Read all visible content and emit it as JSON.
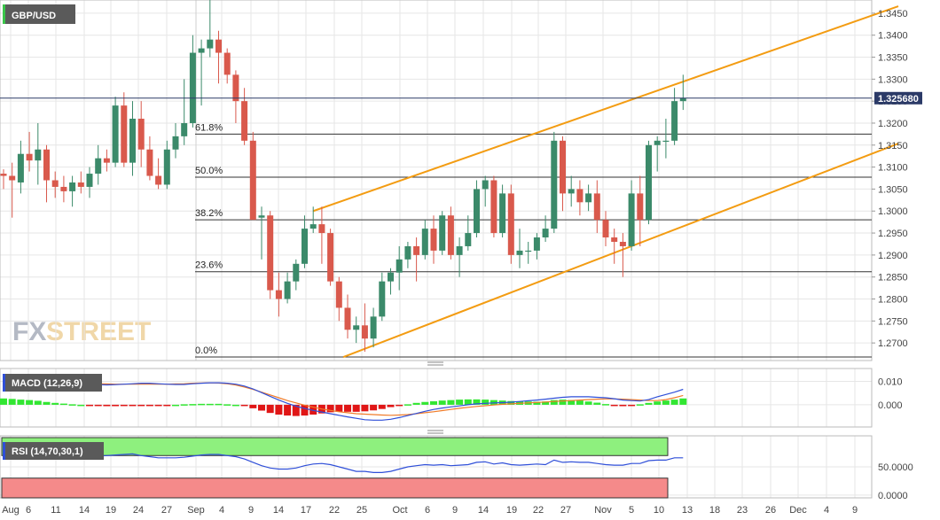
{
  "chart_data": [
    {
      "type": "candlestick",
      "symbol": "GBP/USD",
      "current_price": "1.325680",
      "ylim": [
        1.266,
        1.348
      ],
      "ytick_labels": [
        "1.3450",
        "1.3400",
        "1.3350",
        "1.3300",
        "1.3250",
        "1.3200",
        "1.3150",
        "1.3100",
        "1.3050",
        "1.3000",
        "1.2950",
        "1.2900",
        "1.2850",
        "1.2800",
        "1.2750",
        "1.2700"
      ],
      "ytick_values": [
        1.345,
        1.34,
        1.335,
        1.33,
        1.325,
        1.32,
        1.315,
        1.31,
        1.305,
        1.3,
        1.295,
        1.29,
        1.285,
        1.28,
        1.275,
        1.27
      ],
      "xtick_labels": [
        "Aug",
        "6",
        "11",
        "14",
        "19",
        "24",
        "27",
        "Sep",
        "4",
        "9",
        "14",
        "17",
        "22",
        "25",
        "Oct",
        "6",
        "9",
        "14",
        "19",
        "22",
        "27",
        "Nov",
        "5",
        "10",
        "13",
        "18",
        "23",
        "26",
        "Dec",
        "4",
        "9"
      ],
      "candles_ohlc": [
        [
          1.3085,
          1.3095,
          1.305,
          1.308
        ],
        [
          1.308,
          1.311,
          1.2985,
          1.307
        ],
        [
          1.3065,
          1.316,
          1.304,
          1.313
        ],
        [
          1.313,
          1.318,
          1.309,
          1.3115
        ],
        [
          1.3115,
          1.32,
          1.306,
          1.314
        ],
        [
          1.314,
          1.315,
          1.302,
          1.307
        ],
        [
          1.307,
          1.309,
          1.303,
          1.3055
        ],
        [
          1.3055,
          1.308,
          1.302,
          1.3045
        ],
        [
          1.3045,
          1.308,
          1.301,
          1.3065
        ],
        [
          1.3065,
          1.309,
          1.304,
          1.3055
        ],
        [
          1.3055,
          1.31,
          1.303,
          1.3085
        ],
        [
          1.3085,
          1.315,
          1.306,
          1.312
        ],
        [
          1.312,
          1.314,
          1.309,
          1.311
        ],
        [
          1.311,
          1.326,
          1.31,
          1.324
        ],
        [
          1.324,
          1.327,
          1.31,
          1.311
        ],
        [
          1.311,
          1.325,
          1.308,
          1.321
        ],
        [
          1.321,
          1.325,
          1.31,
          1.314
        ],
        [
          1.314,
          1.317,
          1.307,
          1.308
        ],
        [
          1.308,
          1.312,
          1.305,
          1.306
        ],
        [
          1.306,
          1.316,
          1.305,
          1.314
        ],
        [
          1.314,
          1.32,
          1.312,
          1.317
        ],
        [
          1.317,
          1.33,
          1.315,
          1.32
        ],
        [
          1.32,
          1.34,
          1.319,
          1.336
        ],
        [
          1.336,
          1.339,
          1.324,
          1.337
        ],
        [
          1.337,
          1.348,
          1.335,
          1.339
        ],
        [
          1.339,
          1.341,
          1.329,
          1.336
        ],
        [
          1.336,
          1.337,
          1.329,
          1.331
        ],
        [
          1.331,
          1.332,
          1.32,
          1.325
        ],
        [
          1.325,
          1.328,
          1.315,
          1.316
        ],
        [
          1.316,
          1.318,
          1.299,
          1.298
        ],
        [
          1.2985,
          1.301,
          1.289,
          1.299
        ],
        [
          1.299,
          1.3,
          1.28,
          1.282
        ],
        [
          1.282,
          1.286,
          1.276,
          1.28
        ],
        [
          1.28,
          1.286,
          1.279,
          1.284
        ],
        [
          1.284,
          1.289,
          1.282,
          1.288
        ],
        [
          1.288,
          1.299,
          1.287,
          1.296
        ],
        [
          1.296,
          1.301,
          1.295,
          1.297
        ],
        [
          1.297,
          1.301,
          1.288,
          1.295
        ],
        [
          1.295,
          1.296,
          1.283,
          1.284
        ],
        [
          1.284,
          1.285,
          1.275,
          1.278
        ],
        [
          1.278,
          1.281,
          1.271,
          1.273
        ],
        [
          1.273,
          1.276,
          1.27,
          1.274
        ],
        [
          1.274,
          1.279,
          1.268,
          1.271
        ],
        [
          1.271,
          1.278,
          1.269,
          1.276
        ],
        [
          1.276,
          1.286,
          1.275,
          1.284
        ],
        [
          1.284,
          1.287,
          1.281,
          1.286
        ],
        [
          1.286,
          1.292,
          1.282,
          1.289
        ],
        [
          1.289,
          1.293,
          1.287,
          1.292
        ],
        [
          1.292,
          1.294,
          1.284,
          1.29
        ],
        [
          1.29,
          1.298,
          1.289,
          1.296
        ],
        [
          1.296,
          1.299,
          1.288,
          1.291
        ],
        [
          1.291,
          1.3,
          1.29,
          1.299
        ],
        [
          1.299,
          1.301,
          1.289,
          1.29
        ],
        [
          1.29,
          1.294,
          1.285,
          1.292
        ],
        [
          1.292,
          1.299,
          1.291,
          1.295
        ],
        [
          1.295,
          1.307,
          1.294,
          1.305
        ],
        [
          1.305,
          1.308,
          1.301,
          1.307
        ],
        [
          1.307,
          1.308,
          1.294,
          1.295
        ],
        [
          1.295,
          1.306,
          1.294,
          1.304
        ],
        [
          1.304,
          1.306,
          1.288,
          1.29
        ],
        [
          1.29,
          1.296,
          1.287,
          1.291
        ],
        [
          1.291,
          1.293,
          1.288,
          1.291
        ],
        [
          1.291,
          1.295,
          1.289,
          1.294
        ],
        [
          1.294,
          1.299,
          1.293,
          1.296
        ],
        [
          1.296,
          1.318,
          1.295,
          1.316
        ],
        [
          1.316,
          1.317,
          1.3,
          1.304
        ],
        [
          1.304,
          1.308,
          1.301,
          1.305
        ],
        [
          1.305,
          1.307,
          1.299,
          1.302
        ],
        [
          1.302,
          1.306,
          1.3,
          1.304
        ],
        [
          1.304,
          1.307,
          1.295,
          1.298
        ],
        [
          1.298,
          1.3,
          1.292,
          1.294
        ],
        [
          1.294,
          1.296,
          1.288,
          1.293
        ],
        [
          1.293,
          1.295,
          1.285,
          1.292
        ],
        [
          1.292,
          1.307,
          1.291,
          1.304
        ],
        [
          1.304,
          1.308,
          1.292,
          1.298
        ],
        [
          1.298,
          1.316,
          1.297,
          1.315
        ],
        [
          1.315,
          1.317,
          1.309,
          1.316
        ],
        [
          1.316,
          1.321,
          1.312,
          1.316
        ],
        [
          1.316,
          1.328,
          1.315,
          1.325
        ],
        [
          1.325,
          1.331,
          1.323,
          1.3257
        ]
      ],
      "fibonacci": [
        {
          "label": "61.8%",
          "value": 1.3175
        },
        {
          "label": "50.0%",
          "value": 1.3077
        },
        {
          "label": "38.2%",
          "value": 1.298
        },
        {
          "label": "23.6%",
          "value": 1.2862
        },
        {
          "label": "0.0%",
          "value": 1.2668
        }
      ],
      "watermark": {
        "part1": "FX",
        "part2": "STREET"
      }
    },
    {
      "type": "macd",
      "label": "MACD (12,26,9)",
      "ytick_labels": [
        "0.010",
        "0.000"
      ],
      "ytick_values": [
        0.01,
        0.0
      ],
      "ylim": [
        -0.0095,
        0.0155
      ],
      "histogram": [
        0.0027,
        0.0025,
        0.0022,
        0.002,
        0.0017,
        0.0012,
        0.0008,
        0.0005,
        0.0002,
        0.0,
        -0.0003,
        -0.0005,
        -0.0006,
        -0.0006,
        -0.0005,
        -0.0003,
        -0.0002,
        -0.0002,
        -0.0002,
        -0.0001,
        0.0,
        0.0002,
        0.0003,
        0.0004,
        0.0004,
        0.0004,
        0.0002,
        0.0,
        -0.0005,
        -0.0015,
        -0.0025,
        -0.0035,
        -0.0042,
        -0.0046,
        -0.0048,
        -0.0046,
        -0.0042,
        -0.0037,
        -0.0032,
        -0.003,
        -0.003,
        -0.003,
        -0.0028,
        -0.0024,
        -0.0018,
        -0.001,
        -0.0004,
        0.0002,
        0.0008,
        0.0012,
        0.0015,
        0.0018,
        0.002,
        0.0022,
        0.0023,
        0.0023,
        0.0022,
        0.002,
        0.0018,
        0.0016,
        0.0015,
        0.0014,
        0.0013,
        0.0014,
        0.002,
        0.0022,
        0.002,
        0.0018,
        0.0014,
        0.0009,
        0.0003,
        -0.0003,
        -0.0006,
        -0.0003,
        0.0002,
        0.0008,
        0.0014,
        0.0018,
        0.0022,
        0.0027
      ],
      "macd_line": [
        0.011,
        0.011,
        0.0112,
        0.0112,
        0.011,
        0.0108,
        0.0104,
        0.01,
        0.0096,
        0.0092,
        0.0088,
        0.0086,
        0.0085,
        0.0086,
        0.0088,
        0.009,
        0.0092,
        0.0092,
        0.009,
        0.0088,
        0.0087,
        0.0087,
        0.009,
        0.0092,
        0.0094,
        0.0094,
        0.0092,
        0.0088,
        0.008,
        0.0068,
        0.0052,
        0.0036,
        0.002,
        0.0006,
        -0.0006,
        -0.0016,
        -0.0024,
        -0.0031,
        -0.0038,
        -0.0045,
        -0.0052,
        -0.0058,
        -0.0064,
        -0.0066,
        -0.0066,
        -0.0062,
        -0.0055,
        -0.0046,
        -0.0037,
        -0.0028,
        -0.002,
        -0.0014,
        -0.0009,
        -0.0005,
        0.0,
        0.0004,
        0.0006,
        0.0008,
        0.0009,
        0.0011,
        0.0014,
        0.0017,
        0.002,
        0.0024,
        0.0028,
        0.0032,
        0.0034,
        0.0034,
        0.0034,
        0.0032,
        0.003,
        0.0026,
        0.002,
        0.0018,
        0.0016,
        0.0022,
        0.0034,
        0.0044,
        0.0054,
        0.0066
      ],
      "signal_line": [
        0.009,
        0.0092,
        0.0093,
        0.0094,
        0.0095,
        0.0096,
        0.0096,
        0.0096,
        0.0095,
        0.0093,
        0.0091,
        0.009,
        0.0089,
        0.0088,
        0.0088,
        0.0088,
        0.0088,
        0.0088,
        0.0088,
        0.0088,
        0.0089,
        0.009,
        0.0092,
        0.0093,
        0.0094,
        0.0093,
        0.009,
        0.0084,
        0.0076,
        0.0066,
        0.0054,
        0.0042,
        0.003,
        0.0018,
        0.0008,
        -0.0002,
        -0.001,
        -0.0018,
        -0.0024,
        -0.003,
        -0.0034,
        -0.0038,
        -0.004,
        -0.0042,
        -0.0044,
        -0.0045,
        -0.0044,
        -0.0042,
        -0.0038,
        -0.0034,
        -0.003,
        -0.0025,
        -0.002,
        -0.0015,
        -0.0011,
        -0.0007,
        -0.0004,
        -0.0001,
        0.0002,
        0.0004,
        0.0006,
        0.0008,
        0.001,
        0.0012,
        0.0014,
        0.0016,
        0.0018,
        0.002,
        0.0022,
        0.0024,
        0.0025,
        0.0025,
        0.0024,
        0.0022,
        0.002,
        0.0018,
        0.0018,
        0.0022,
        0.003,
        0.004
      ]
    },
    {
      "type": "rsi",
      "label": "RSI (14,70,30,1)",
      "ytick_labels": [
        "50.0000",
        "0.0000"
      ],
      "ytick_values": [
        50,
        0
      ],
      "ylim": [
        -5,
        105
      ],
      "levels": [
        70,
        30
      ],
      "values": [
        70,
        70,
        71,
        70,
        69,
        70,
        68,
        67,
        66,
        67,
        68,
        69,
        70,
        71,
        72,
        73,
        70,
        68,
        66,
        66,
        66,
        67,
        69,
        71,
        72,
        72,
        70,
        68,
        64,
        58,
        52,
        48,
        46,
        46,
        48,
        52,
        55,
        56,
        54,
        50,
        46,
        42,
        42,
        40,
        40,
        42,
        46,
        50,
        52,
        54,
        53,
        54,
        52,
        53,
        54,
        58,
        59,
        55,
        57,
        54,
        53,
        54,
        55,
        54,
        62,
        58,
        59,
        58,
        58,
        56,
        54,
        53,
        53,
        56,
        56,
        61,
        62,
        62,
        66,
        66
      ]
    }
  ]
}
